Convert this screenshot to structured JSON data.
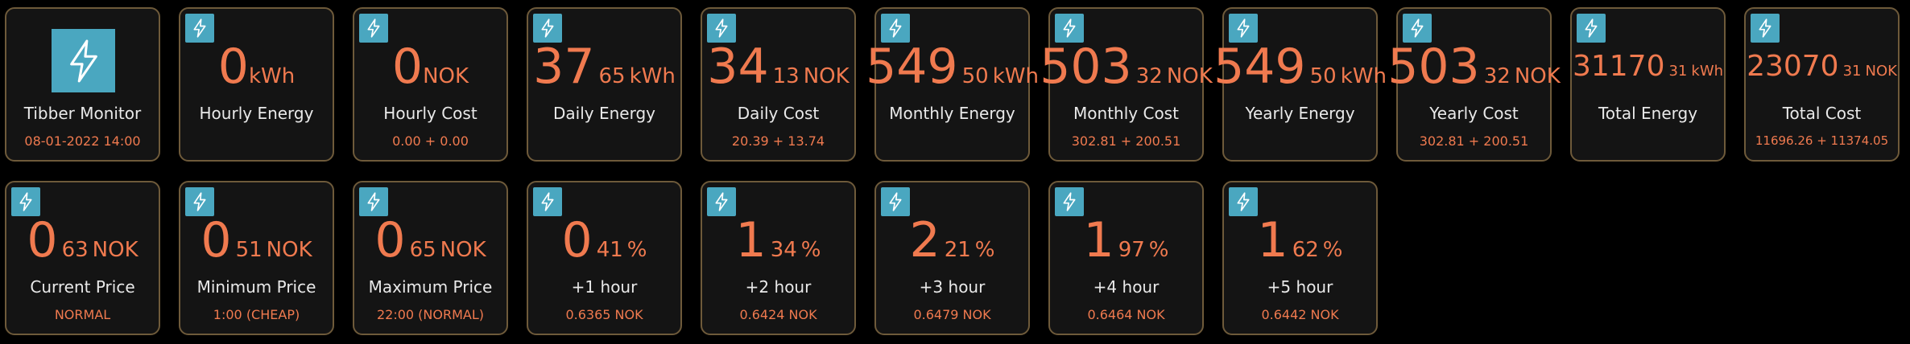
{
  "monitor": {
    "title": "Tibber Monitor",
    "timestamp": "08-01-2022 14:00"
  },
  "tiles": [
    {
      "title": "Hourly Energy",
      "int": "0",
      "dec": "",
      "unit": "kWh",
      "sub": ""
    },
    {
      "title": "Hourly Cost",
      "int": "0",
      "dec": "",
      "unit": "NOK",
      "sub": "0.00 + 0.00"
    },
    {
      "title": "Daily Energy",
      "int": "37",
      "dec": "65",
      "unit": "kWh",
      "sub": ""
    },
    {
      "title": "Daily Cost",
      "int": "34",
      "dec": "13",
      "unit": "NOK",
      "sub": "20.39 + 13.74"
    },
    {
      "title": "Monthly Energy",
      "int": "549",
      "dec": "50",
      "unit": "kWh",
      "sub": ""
    },
    {
      "title": "Monthly Cost",
      "int": "503",
      "dec": "32",
      "unit": "NOK",
      "sub": "302.81 + 200.51"
    },
    {
      "title": "Yearly Energy",
      "int": "549",
      "dec": "50",
      "unit": "kWh",
      "sub": ""
    },
    {
      "title": "Yearly Cost",
      "int": "503",
      "dec": "32",
      "unit": "NOK",
      "sub": "302.81 + 200.51"
    },
    {
      "title": "Total Energy",
      "int": "31170",
      "dec": "31",
      "unit": "kWh",
      "sub": ""
    },
    {
      "title": "Total Cost",
      "int": "23070",
      "dec": "31",
      "unit": "NOK",
      "sub": "11696.26 + 11374.05"
    },
    {
      "title": "Current Price",
      "int": "0",
      "dec": "63",
      "unit": "NOK",
      "sub": "NORMAL"
    },
    {
      "title": "Minimum Price",
      "int": "0",
      "dec": "51",
      "unit": "NOK",
      "sub": "1:00 (CHEAP)"
    },
    {
      "title": "Maximum Price",
      "int": "0",
      "dec": "65",
      "unit": "NOK",
      "sub": "22:00 (NORMAL)"
    },
    {
      "title": "+1 hour",
      "int": "0",
      "dec": "41",
      "unit": "%",
      "sub": "0.6365 NOK"
    },
    {
      "title": "+2 hour",
      "int": "1",
      "dec": "34",
      "unit": "%",
      "sub": "0.6424 NOK"
    },
    {
      "title": "+3 hour",
      "int": "2",
      "dec": "21",
      "unit": "%",
      "sub": "0.6479 NOK"
    },
    {
      "title": "+4 hour",
      "int": "1",
      "dec": "97",
      "unit": "%",
      "sub": "0.6464 NOK"
    },
    {
      "title": "+5 hour",
      "int": "1",
      "dec": "62",
      "unit": "%",
      "sub": "0.6442 NOK"
    }
  ],
  "icons": {
    "tile": "lightning-bolt-icon",
    "logo": "lightning-bolt-icon"
  },
  "colors": {
    "accent": "#f07a4f",
    "badge": "#4aa7c0",
    "border": "#6e5a3a",
    "tile_bg": "#141414",
    "label": "#e9e9e9"
  }
}
